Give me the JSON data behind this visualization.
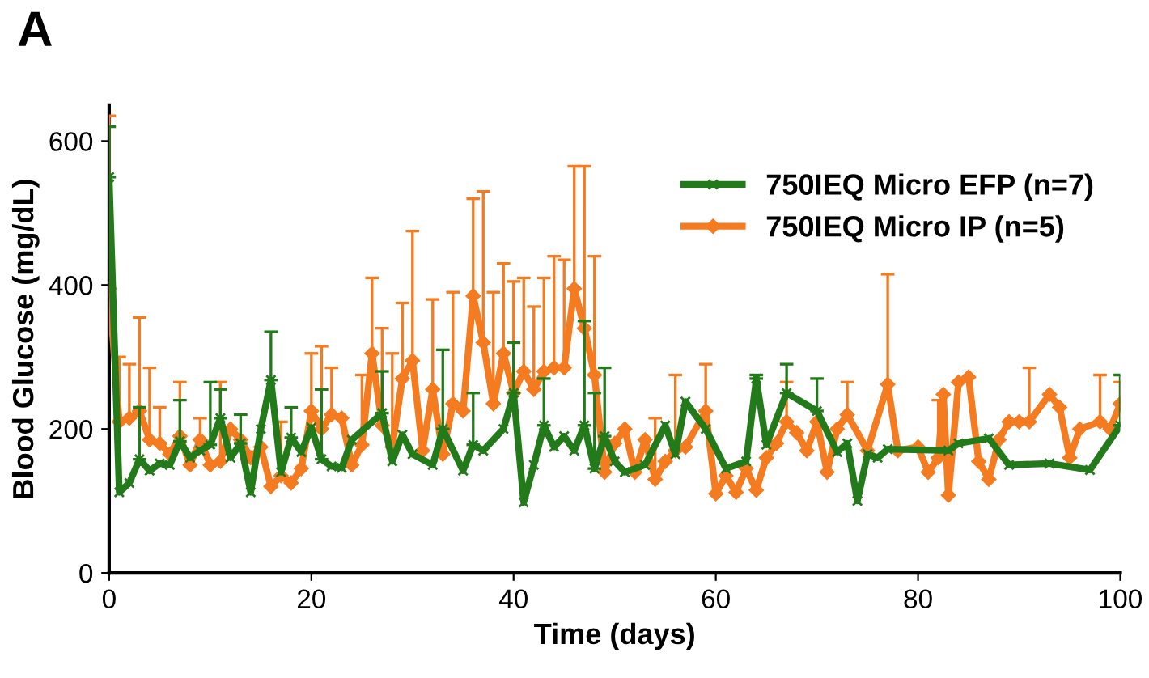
{
  "chart_data": {
    "type": "line",
    "title": "A",
    "xlabel": "Time (days)",
    "ylabel": "Blood Glucose (mg/dL)",
    "xlim": [
      0,
      100
    ],
    "xticks": [
      0,
      20,
      40,
      60,
      80,
      100
    ],
    "ylim": [
      0,
      650
    ],
    "yticks": [
      0,
      200,
      400,
      600
    ],
    "grid": false,
    "legend": "right",
    "series": [
      {
        "name": "750IEQ Micro EFP (n=7)",
        "color": "#237a1a",
        "marker": "cross",
        "x": [
          0,
          1,
          2,
          3,
          4,
          5,
          6,
          7,
          8,
          9,
          10,
          11,
          12,
          13,
          14,
          15,
          16,
          17,
          18,
          19,
          20,
          21,
          22,
          23,
          24,
          27,
          28,
          29,
          30,
          32,
          33,
          35,
          36,
          37,
          39,
          40,
          41,
          42,
          43,
          44,
          45,
          46,
          47,
          48,
          49,
          50,
          51,
          53,
          55,
          56,
          57,
          59,
          61,
          63,
          64,
          65,
          67,
          70,
          72,
          73,
          74,
          75,
          76,
          77,
          83,
          84,
          87,
          89,
          93,
          97,
          100
        ],
        "values": [
          550,
          112,
          125,
          158,
          142,
          152,
          150,
          183,
          160,
          170,
          178,
          215,
          160,
          180,
          112,
          200,
          268,
          140,
          188,
          168,
          202,
          158,
          148,
          146,
          185,
          222,
          155,
          192,
          165,
          150,
          200,
          142,
          178,
          170,
          200,
          250,
          98,
          150,
          205,
          175,
          190,
          170,
          205,
          145,
          190,
          155,
          140,
          150,
          205,
          165,
          238,
          200,
          145,
          155,
          270,
          178,
          250,
          225,
          168,
          180,
          100,
          165,
          160,
          172,
          170,
          180,
          187,
          150,
          152,
          143,
          205
        ],
        "errors": [
          [
            550,
            620
          ],
          null,
          null,
          [
            158,
            230
          ],
          null,
          null,
          null,
          [
            183,
            240
          ],
          null,
          null,
          [
            178,
            265
          ],
          [
            215,
            255
          ],
          null,
          [
            180,
            220
          ],
          null,
          null,
          [
            268,
            335
          ],
          null,
          [
            188,
            230
          ],
          null,
          null,
          [
            158,
            255
          ],
          null,
          null,
          null,
          [
            222,
            280
          ],
          null,
          null,
          null,
          null,
          [
            200,
            310
          ],
          null,
          [
            178,
            250
          ],
          null,
          null,
          [
            250,
            320
          ],
          null,
          null,
          [
            205,
            270
          ],
          null,
          null,
          null,
          [
            205,
            350
          ],
          [
            145,
            250
          ],
          [
            190,
            285
          ],
          null,
          null,
          null,
          null,
          null,
          null,
          null,
          null,
          null,
          [
            270,
            275
          ],
          null,
          [
            250,
            290
          ],
          [
            225,
            270
          ],
          null,
          null,
          null,
          null,
          null,
          null,
          null,
          null,
          null,
          null,
          null,
          null,
          [
            205,
            275
          ]
        ]
      },
      {
        "name": "750IEQ Micro IP (n=5)",
        "color": "#f47b20",
        "marker": "diamond",
        "x": [
          0,
          1,
          2,
          3,
          4,
          5,
          6,
          7,
          8,
          9,
          10,
          11,
          12,
          13,
          14,
          15,
          16,
          17,
          18,
          19,
          20,
          21,
          22,
          23,
          24,
          25,
          26,
          27,
          28,
          29,
          30,
          31,
          32,
          33,
          34,
          35,
          36,
          37,
          38,
          39,
          40,
          41,
          42,
          43,
          44,
          45,
          46,
          47,
          48,
          49,
          50,
          51,
          52,
          53,
          54,
          55,
          56,
          57,
          59,
          60,
          61,
          62,
          63,
          64,
          65,
          66,
          67,
          68,
          69,
          70,
          71,
          72,
          73,
          75,
          77,
          78,
          80,
          81,
          82,
          82.5,
          83,
          84,
          85,
          86,
          87,
          88,
          89,
          90,
          91,
          93,
          94,
          95,
          96,
          98,
          99,
          100
        ],
        "values": [
          395,
          210,
          215,
          225,
          185,
          180,
          165,
          190,
          150,
          185,
          150,
          155,
          200,
          185,
          160,
          175,
          120,
          135,
          125,
          145,
          225,
          200,
          220,
          215,
          150,
          178,
          305,
          205,
          175,
          270,
          295,
          170,
          255,
          165,
          235,
          225,
          385,
          320,
          235,
          305,
          250,
          280,
          255,
          280,
          285,
          285,
          395,
          340,
          275,
          140,
          180,
          200,
          140,
          185,
          130,
          155,
          170,
          175,
          225,
          110,
          135,
          112,
          145,
          115,
          160,
          180,
          210,
          195,
          170,
          210,
          140,
          200,
          220,
          170,
          262,
          170,
          175,
          140,
          160,
          248,
          108,
          265,
          272,
          155,
          130,
          185,
          210,
          210,
          210,
          248,
          230,
          160,
          200,
          210,
          200,
          235
        ],
        "errors": [
          [
            395,
            635
          ],
          [
            210,
            300
          ],
          [
            215,
            290
          ],
          [
            225,
            355
          ],
          [
            185,
            285
          ],
          [
            180,
            230
          ],
          null,
          [
            190,
            265
          ],
          null,
          [
            185,
            215
          ],
          null,
          [
            155,
            265
          ],
          null,
          null,
          null,
          null,
          null,
          [
            135,
            210
          ],
          null,
          null,
          [
            225,
            305
          ],
          [
            200,
            315
          ],
          [
            220,
            285
          ],
          null,
          null,
          [
            178,
            275
          ],
          [
            305,
            410
          ],
          [
            205,
            340
          ],
          [
            175,
            305
          ],
          [
            270,
            375
          ],
          [
            295,
            475
          ],
          null,
          [
            255,
            380
          ],
          null,
          [
            235,
            390
          ],
          null,
          [
            385,
            520
          ],
          [
            320,
            530
          ],
          [
            235,
            390
          ],
          [
            305,
            430
          ],
          [
            250,
            405
          ],
          [
            280,
            410
          ],
          [
            255,
            370
          ],
          [
            280,
            410
          ],
          [
            285,
            440
          ],
          [
            285,
            435
          ],
          [
            395,
            565
          ],
          [
            340,
            565
          ],
          [
            275,
            440
          ],
          null,
          null,
          null,
          null,
          null,
          [
            130,
            215
          ],
          null,
          [
            170,
            275
          ],
          null,
          [
            225,
            290
          ],
          null,
          null,
          null,
          null,
          null,
          null,
          null,
          [
            210,
            265
          ],
          null,
          null,
          null,
          null,
          null,
          [
            220,
            265
          ],
          null,
          [
            262,
            415
          ],
          null,
          null,
          null,
          [
            160,
            240
          ],
          null,
          null,
          null,
          null,
          null,
          null,
          null,
          null,
          null,
          [
            210,
            285
          ],
          null,
          null,
          null,
          null,
          [
            210,
            275
          ],
          null,
          [
            235,
            265
          ]
        ]
      }
    ]
  }
}
